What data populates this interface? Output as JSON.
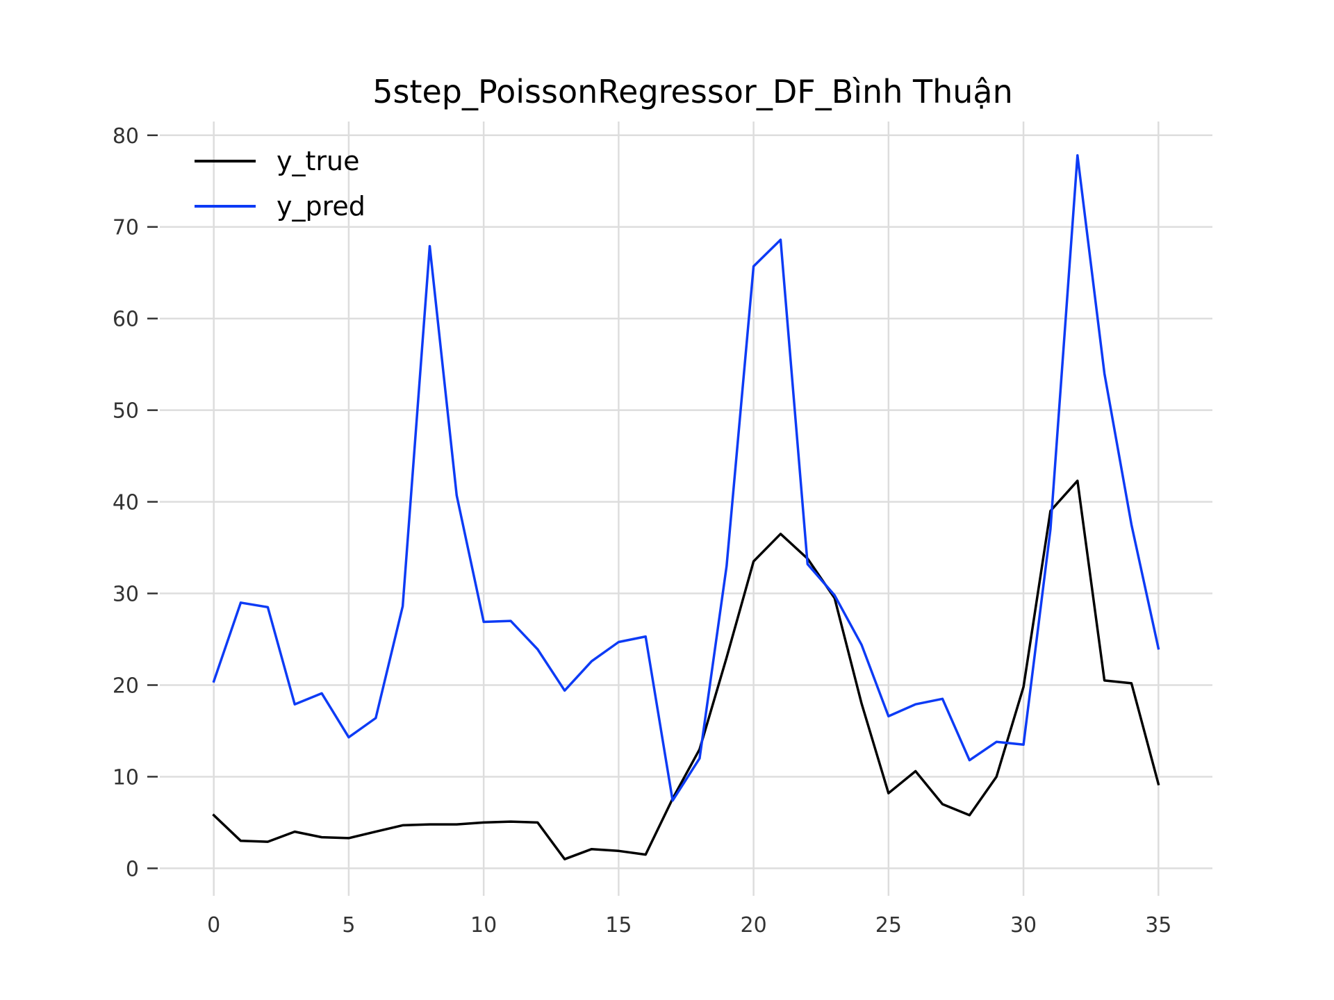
{
  "chart_data": {
    "type": "line",
    "title": "5step_PoissonRegressor_DF_Bình Thuận",
    "xlabel": "",
    "ylabel": "",
    "xlim": [
      -2,
      37
    ],
    "ylim": [
      -3,
      81.5
    ],
    "x_ticks": [
      0,
      5,
      10,
      15,
      20,
      25,
      30,
      35
    ],
    "y_ticks": [
      0,
      10,
      20,
      30,
      40,
      50,
      60,
      70,
      80
    ],
    "grid": true,
    "legend_position": "top-left",
    "x": [
      0,
      1,
      2,
      3,
      4,
      5,
      6,
      7,
      8,
      9,
      10,
      11,
      12,
      13,
      14,
      15,
      16,
      17,
      18,
      19,
      20,
      21,
      22,
      23,
      24,
      25,
      26,
      27,
      28,
      29,
      30,
      31,
      32,
      33,
      34,
      35
    ],
    "series": [
      {
        "name": "y_true",
        "color": "#000000",
        "values": [
          5.8,
          3.0,
          2.9,
          4.0,
          3.4,
          3.3,
          4.0,
          4.7,
          4.8,
          4.8,
          5.0,
          5.1,
          5.0,
          1.0,
          2.1,
          1.9,
          1.5,
          7.6,
          13.0,
          23.0,
          33.5,
          36.5,
          33.8,
          29.5,
          18.0,
          8.2,
          10.6,
          7.0,
          5.8,
          10.0,
          19.8,
          39.0,
          42.3,
          20.5,
          20.2,
          9.2
        ]
      },
      {
        "name": "y_pred",
        "color": "#0d3bf5",
        "values": [
          20.4,
          29.0,
          28.5,
          17.9,
          19.1,
          14.3,
          16.4,
          28.6,
          67.9,
          40.7,
          26.9,
          27.0,
          23.9,
          19.4,
          22.6,
          24.7,
          25.3,
          7.4,
          12.0,
          33.0,
          65.7,
          68.6,
          33.2,
          29.8,
          24.4,
          16.6,
          17.9,
          18.5,
          11.8,
          13.8,
          13.5,
          37.0,
          77.8,
          54.0,
          37.5,
          24.0
        ]
      }
    ]
  }
}
